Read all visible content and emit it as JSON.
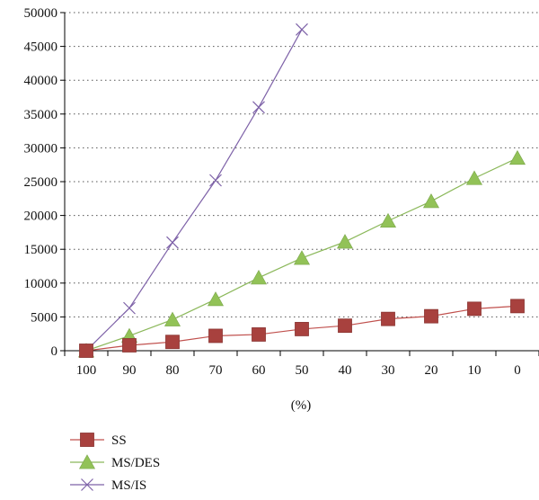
{
  "chart_data": {
    "type": "line",
    "xlabel": "(%)",
    "ylabel": "",
    "categories": [
      "100",
      "90",
      "80",
      "70",
      "60",
      "50",
      "40",
      "30",
      "20",
      "10",
      "0"
    ],
    "ylim": [
      0,
      50000
    ],
    "yticks": [
      0,
      5000,
      10000,
      15000,
      20000,
      25000,
      30000,
      35000,
      40000,
      45000,
      50000
    ],
    "grid": "horizontal-dotted",
    "legend": "bottom-left",
    "series": [
      {
        "name": "SS",
        "marker": "square",
        "color": "#c0504d",
        "markerColor": "#a8413e",
        "values": [
          0,
          800,
          1300,
          2200,
          2400,
          3200,
          3700,
          4700,
          5100,
          6200,
          6600
        ]
      },
      {
        "name": "MS/DES",
        "marker": "triangle",
        "color": "#8bb85a",
        "markerColor": "#92c257",
        "values": [
          0,
          2200,
          4600,
          7600,
          10800,
          13700,
          16100,
          19200,
          22100,
          25500,
          28500
        ]
      },
      {
        "name": "MS/IS",
        "marker": "x",
        "color": "#7e62a8",
        "markerColor": "#7e62a8",
        "values": [
          0,
          6300,
          16000,
          25200,
          36000,
          47500,
          null,
          null,
          null,
          null,
          null
        ]
      }
    ]
  }
}
